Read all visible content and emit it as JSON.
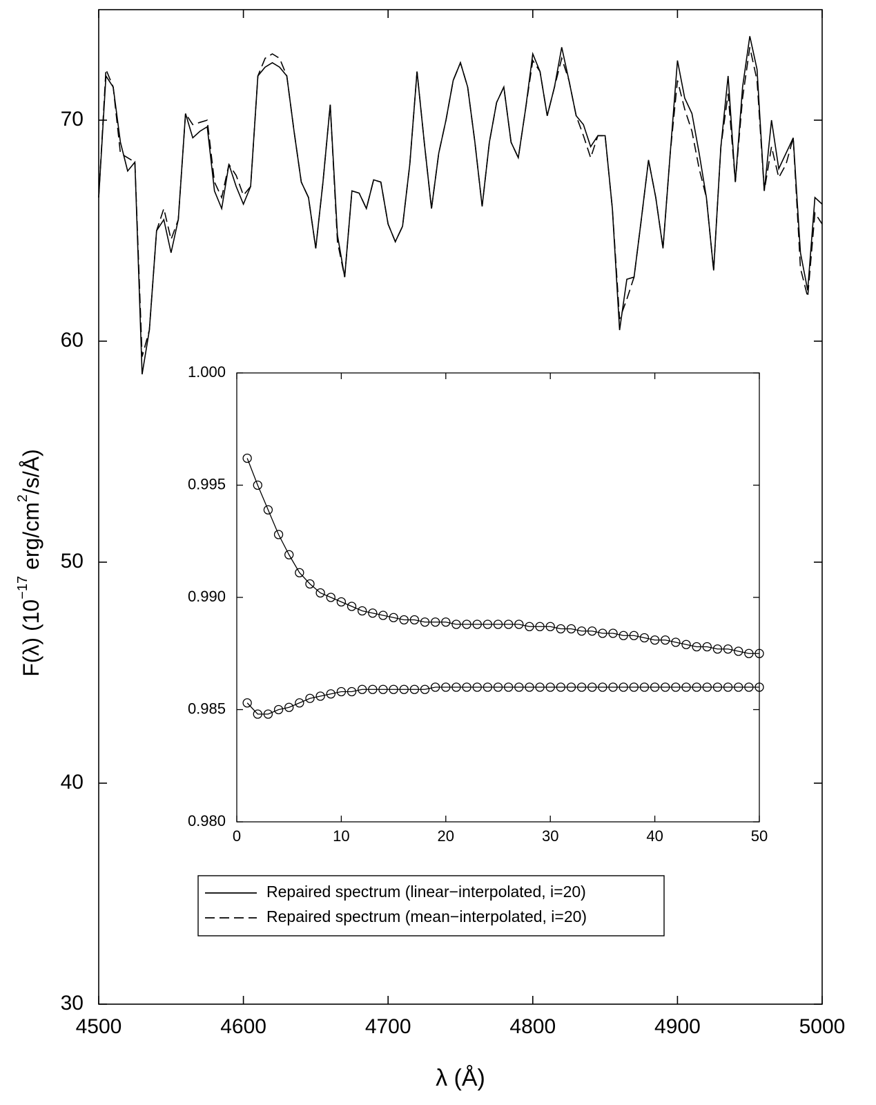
{
  "chart_data": [
    {
      "type": "line",
      "xlabel": "λ (Å)",
      "ylabel_parts": [
        "F(λ) (10",
        "−17",
        " erg/cm",
        "2",
        "/s/Å)"
      ],
      "xlim": [
        4500,
        5000
      ],
      "xticks": [
        4500,
        4600,
        4700,
        4800,
        4900,
        5000
      ],
      "ylim": [
        30,
        75
      ],
      "yticks": [
        30,
        40,
        50,
        60,
        70
      ],
      "legend": "lower-left",
      "x": [
        4500,
        4505,
        4510,
        4515,
        4520,
        4525,
        4530,
        4535,
        4540,
        4545,
        4550,
        4555,
        4560,
        4565,
        4570,
        4575,
        4580,
        4585,
        4590,
        4595,
        4600,
        4605,
        4610,
        4615,
        4620,
        4625,
        4630,
        4635,
        4640,
        4645,
        4650,
        4655,
        4660,
        4665,
        4670,
        4675,
        4680,
        4685,
        4690,
        4695,
        4700,
        4705,
        4710,
        4715,
        4720,
        4725,
        4730,
        4735,
        4740,
        4745,
        4750,
        4755,
        4760,
        4765,
        4770,
        4775,
        4780,
        4785,
        4790,
        4795,
        4800,
        4805,
        4810,
        4815,
        4820,
        4825,
        4830,
        4835,
        4840,
        4845,
        4850,
        4855,
        4860,
        4865,
        4870,
        4875,
        4880,
        4885,
        4890,
        4895,
        4900,
        4905,
        4910,
        4915,
        4920,
        4925,
        4930,
        4935,
        4940,
        4945,
        4950,
        4955,
        4960,
        4965,
        4970,
        4975,
        4980,
        4985,
        4990,
        4995,
        5000
      ],
      "series": [
        {
          "name": "Repaired spectrum (linear−interpolated, i=20)",
          "color": "#000000",
          "dash": "solid",
          "values": [
            66.5,
            72.0,
            71.5,
            69.0,
            67.7,
            68.1,
            58.5,
            60.5,
            65.0,
            65.5,
            64.0,
            65.5,
            70.3,
            69.2,
            69.5,
            69.7,
            66.8,
            66.0,
            68.0,
            67.0,
            66.2,
            67.0,
            72.0,
            72.4,
            72.6,
            72.4,
            72.0,
            69.5,
            67.2,
            66.5,
            64.2,
            67.2,
            70.7,
            64.8,
            62.9,
            66.8,
            66.7,
            66.0,
            67.3,
            67.2,
            65.3,
            64.5,
            65.2,
            68.0,
            72.2,
            69.0,
            66.0,
            68.5,
            70.0,
            71.8,
            72.6,
            71.5,
            69.0,
            66.1,
            69.0,
            70.8,
            71.5,
            69.0,
            68.3,
            70.5,
            73.0,
            72.2,
            70.2,
            71.5,
            73.3,
            71.8,
            70.2,
            69.8,
            68.8,
            69.3,
            69.3,
            66.0,
            60.5,
            62.8,
            62.9,
            65.5,
            68.2,
            66.5,
            64.2,
            68.5,
            72.7,
            71.0,
            70.3,
            68.5,
            66.5,
            63.2,
            68.8,
            72.0,
            67.2,
            71.5,
            73.8,
            72.3,
            66.8,
            70.0,
            67.8,
            68.5,
            69.2,
            64.0,
            62.3,
            66.5,
            66.2
          ]
        },
        {
          "name": "Repaired spectrum (mean−interpolated, i=20)",
          "color": "#000000",
          "dash": "dashed",
          "values": [
            66.5,
            72.3,
            71.5,
            68.5,
            68.3,
            68.1,
            59.3,
            60.5,
            65.0,
            66.0,
            64.6,
            65.5,
            70.3,
            69.8,
            69.9,
            70.0,
            67.2,
            66.5,
            68.0,
            67.5,
            66.6,
            67.0,
            72.0,
            72.8,
            73.0,
            72.8,
            72.0,
            69.5,
            67.2,
            66.5,
            64.2,
            67.2,
            70.7,
            64.5,
            62.9,
            66.8,
            66.7,
            66.0,
            67.3,
            67.2,
            65.3,
            64.5,
            65.2,
            68.0,
            72.2,
            69.0,
            66.0,
            68.5,
            70.0,
            71.8,
            72.6,
            71.5,
            69.0,
            66.1,
            69.0,
            70.8,
            71.5,
            69.0,
            68.3,
            70.5,
            72.7,
            72.2,
            70.2,
            71.5,
            72.8,
            71.8,
            70.2,
            69.3,
            68.3,
            69.3,
            69.3,
            66.0,
            61.0,
            61.9,
            62.9,
            65.5,
            68.2,
            66.5,
            64.2,
            68.5,
            71.8,
            70.5,
            69.5,
            67.8,
            66.5,
            63.2,
            68.8,
            71.2,
            67.2,
            71.0,
            73.3,
            71.8,
            66.8,
            68.8,
            67.4,
            68.0,
            69.2,
            63.3,
            62.0,
            65.8,
            65.3
          ]
        }
      ]
    },
    {
      "type": "line",
      "xlim": [
        0,
        50
      ],
      "xticks": [
        0,
        10,
        20,
        30,
        40,
        50
      ],
      "ylim": [
        0.98,
        1.0
      ],
      "yticks": [
        {
          "value": 0.98,
          "label": "0.980"
        },
        {
          "value": 0.985,
          "label": "0.985"
        },
        {
          "value": 0.99,
          "label": "0.990"
        },
        {
          "value": 0.995,
          "label": "0.995"
        },
        {
          "value": 1.0,
          "label": "1.000"
        }
      ],
      "x": [
        1,
        2,
        3,
        4,
        5,
        6,
        7,
        8,
        9,
        10,
        11,
        12,
        13,
        14,
        15,
        16,
        17,
        18,
        19,
        20,
        21,
        22,
        23,
        24,
        25,
        26,
        27,
        28,
        29,
        30,
        31,
        32,
        33,
        34,
        35,
        36,
        37,
        38,
        39,
        40,
        41,
        42,
        43,
        44,
        45,
        46,
        47,
        48,
        49,
        50
      ],
      "series": [
        {
          "color": "#000000",
          "marker": "circle",
          "values": [
            0.9962,
            0.995,
            0.9939,
            0.9928,
            0.9919,
            0.9911,
            0.9906,
            0.9902,
            0.99,
            0.9898,
            0.9896,
            0.9894,
            0.9893,
            0.9892,
            0.9891,
            0.989,
            0.989,
            0.9889,
            0.9889,
            0.9889,
            0.9888,
            0.9888,
            0.9888,
            0.9888,
            0.9888,
            0.9888,
            0.9888,
            0.9887,
            0.9887,
            0.9887,
            0.9886,
            0.9886,
            0.9885,
            0.9885,
            0.9884,
            0.9884,
            0.9883,
            0.9883,
            0.9882,
            0.9881,
            0.9881,
            0.988,
            0.9879,
            0.9878,
            0.9878,
            0.9877,
            0.9877,
            0.9876,
            0.9875,
            0.9875
          ]
        },
        {
          "color": "#000000",
          "marker": "circle",
          "values": [
            0.9853,
            0.9848,
            0.9848,
            0.985,
            0.9851,
            0.9853,
            0.9855,
            0.9856,
            0.9857,
            0.9858,
            0.9858,
            0.9859,
            0.9859,
            0.9859,
            0.9859,
            0.9859,
            0.9859,
            0.9859,
            0.986,
            0.986,
            0.986,
            0.986,
            0.986,
            0.986,
            0.986,
            0.986,
            0.986,
            0.986,
            0.986,
            0.986,
            0.986,
            0.986,
            0.986,
            0.986,
            0.986,
            0.986,
            0.986,
            0.986,
            0.986,
            0.986,
            0.986,
            0.986,
            0.986,
            0.986,
            0.986,
            0.986,
            0.986,
            0.986,
            0.986,
            0.986
          ]
        }
      ]
    }
  ]
}
